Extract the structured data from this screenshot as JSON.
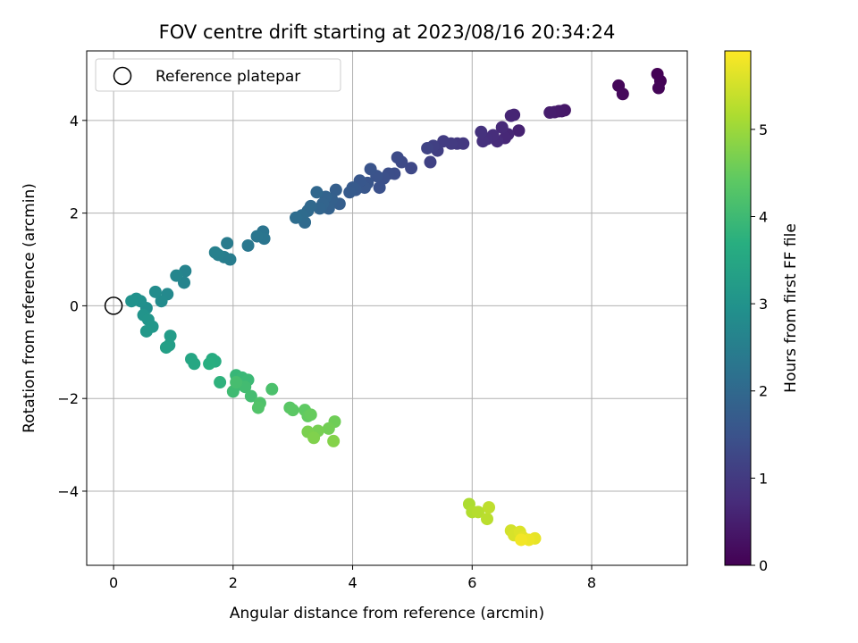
{
  "chart_data": {
    "type": "scatter",
    "title": "FOV centre drift starting at 2023/08/16 20:34:24",
    "xlabel": "Angular distance from reference (arcmin)",
    "ylabel": "Rotation from reference (arcmin)",
    "xlim": [
      -0.45,
      9.6
    ],
    "ylim": [
      -5.6,
      5.5
    ],
    "x_ticks": [
      0,
      2,
      4,
      6,
      8
    ],
    "y_ticks": [
      -4,
      -2,
      0,
      2,
      4
    ],
    "x_tick_labels": [
      "0",
      "2",
      "4",
      "6",
      "8"
    ],
    "y_tick_labels": [
      "−4",
      "−2",
      "0",
      "2",
      "4"
    ],
    "grid": true,
    "legend": {
      "position": "top-left",
      "entries": [
        {
          "label": "Reference platepar",
          "marker": "open-circle",
          "color": "#000000"
        }
      ]
    },
    "colorbar": {
      "label": "Hours from first FF file",
      "min": 0,
      "max": 5.9,
      "ticks": [
        0,
        1,
        2,
        3,
        4,
        5
      ],
      "tick_labels": [
        "0",
        "1",
        "2",
        "3",
        "4",
        "5"
      ],
      "colormap": "viridis"
    },
    "reference_point": {
      "x": 0,
      "y": 0
    },
    "points": [
      [
        9.1,
        5.0,
        0.02
      ],
      [
        9.15,
        4.85,
        0.04
      ],
      [
        9.12,
        4.7,
        0.06
      ],
      [
        8.45,
        4.75,
        0.1
      ],
      [
        8.52,
        4.57,
        0.14
      ],
      [
        7.55,
        4.22,
        0.35
      ],
      [
        7.5,
        4.2,
        0.38
      ],
      [
        7.45,
        4.2,
        0.41
      ],
      [
        7.38,
        4.18,
        0.44
      ],
      [
        7.3,
        4.17,
        0.47
      ],
      [
        6.78,
        3.78,
        0.55
      ],
      [
        6.7,
        4.12,
        0.58
      ],
      [
        6.65,
        4.1,
        0.6
      ],
      [
        6.6,
        3.7,
        0.63
      ],
      [
        6.55,
        3.62,
        0.66
      ],
      [
        6.5,
        3.85,
        0.69
      ],
      [
        6.42,
        3.55,
        0.72
      ],
      [
        6.35,
        3.68,
        0.75
      ],
      [
        6.25,
        3.6,
        0.78
      ],
      [
        6.18,
        3.55,
        0.81
      ],
      [
        6.15,
        3.75,
        0.84
      ],
      [
        5.85,
        3.5,
        0.95
      ],
      [
        5.75,
        3.5,
        0.98
      ],
      [
        5.65,
        3.5,
        1.01
      ],
      [
        5.52,
        3.55,
        1.04
      ],
      [
        5.42,
        3.35,
        1.08
      ],
      [
        5.35,
        3.45,
        1.11
      ],
      [
        5.3,
        3.1,
        1.14
      ],
      [
        5.25,
        3.4,
        1.17
      ],
      [
        4.98,
        2.97,
        1.28
      ],
      [
        4.82,
        3.1,
        1.31
      ],
      [
        4.75,
        3.2,
        1.34
      ],
      [
        4.7,
        2.85,
        1.37
      ],
      [
        4.6,
        2.85,
        1.4
      ],
      [
        4.52,
        2.75,
        1.43
      ],
      [
        4.45,
        2.55,
        1.46
      ],
      [
        4.4,
        2.8,
        1.49
      ],
      [
        4.3,
        2.95,
        1.52
      ],
      [
        4.25,
        2.65,
        1.55
      ],
      [
        4.2,
        2.55,
        1.58
      ],
      [
        4.12,
        2.7,
        1.6
      ],
      [
        4.05,
        2.5,
        1.63
      ],
      [
        4.0,
        2.55,
        1.66
      ],
      [
        3.95,
        2.45,
        1.69
      ],
      [
        3.78,
        2.2,
        1.75
      ],
      [
        3.72,
        2.5,
        1.78
      ],
      [
        3.65,
        2.3,
        1.8
      ],
      [
        3.6,
        2.1,
        1.83
      ],
      [
        3.55,
        2.35,
        1.86
      ],
      [
        3.5,
        2.2,
        1.89
      ],
      [
        3.45,
        2.1,
        1.92
      ],
      [
        3.4,
        2.45,
        1.95
      ],
      [
        3.3,
        2.15,
        1.98
      ],
      [
        3.25,
        2.05,
        2.0
      ],
      [
        3.2,
        1.8,
        2.03
      ],
      [
        3.15,
        1.95,
        2.06
      ],
      [
        3.05,
        1.9,
        2.09
      ],
      [
        2.5,
        1.6,
        2.25
      ],
      [
        2.52,
        1.45,
        2.28
      ],
      [
        2.4,
        1.5,
        2.31
      ],
      [
        2.25,
        1.3,
        2.34
      ],
      [
        1.9,
        1.35,
        2.42
      ],
      [
        1.95,
        1.0,
        2.45
      ],
      [
        1.85,
        1.05,
        2.48
      ],
      [
        1.75,
        1.1,
        2.51
      ],
      [
        1.7,
        1.15,
        2.54
      ],
      [
        1.2,
        0.75,
        2.62
      ],
      [
        1.18,
        0.5,
        2.65
      ],
      [
        1.05,
        0.65,
        2.68
      ],
      [
        0.9,
        0.25,
        2.76
      ],
      [
        0.8,
        0.1,
        2.8
      ],
      [
        0.7,
        0.3,
        2.84
      ],
      [
        0.55,
        -0.05,
        2.88
      ],
      [
        0.45,
        0.1,
        2.92
      ],
      [
        0.38,
        0.15,
        2.95
      ],
      [
        0.3,
        0.1,
        2.98
      ],
      [
        0.5,
        -0.2,
        3.02
      ],
      [
        0.58,
        -0.3,
        3.06
      ],
      [
        0.65,
        -0.45,
        3.1
      ],
      [
        0.55,
        -0.55,
        3.14
      ],
      [
        0.95,
        -0.65,
        3.22
      ],
      [
        0.93,
        -0.85,
        3.26
      ],
      [
        0.88,
        -0.9,
        3.3
      ],
      [
        1.3,
        -1.15,
        3.45
      ],
      [
        1.35,
        -1.25,
        3.5
      ],
      [
        1.65,
        -1.15,
        3.6
      ],
      [
        1.7,
        -1.2,
        3.64
      ],
      [
        1.6,
        -1.25,
        3.68
      ],
      [
        1.78,
        -1.65,
        3.78
      ],
      [
        2.05,
        -1.5,
        3.9
      ],
      [
        2.15,
        -1.55,
        3.93
      ],
      [
        2.25,
        -1.6,
        3.96
      ],
      [
        2.1,
        -1.7,
        3.99
      ],
      [
        2.0,
        -1.85,
        4.02
      ],
      [
        2.2,
        -1.75,
        4.05
      ],
      [
        2.3,
        -1.95,
        4.08
      ],
      [
        2.05,
        -1.65,
        4.11
      ],
      [
        2.65,
        -1.8,
        4.18
      ],
      [
        2.45,
        -2.1,
        4.22
      ],
      [
        2.42,
        -2.2,
        4.26
      ],
      [
        2.95,
        -2.2,
        4.35
      ],
      [
        3.0,
        -2.25,
        4.38
      ],
      [
        3.2,
        -2.25,
        4.42
      ],
      [
        3.25,
        -2.38,
        4.46
      ],
      [
        3.3,
        -2.35,
        4.5
      ],
      [
        3.7,
        -2.5,
        4.58
      ],
      [
        3.6,
        -2.65,
        4.62
      ],
      [
        3.42,
        -2.7,
        4.66
      ],
      [
        3.25,
        -2.72,
        4.7
      ],
      [
        3.35,
        -2.85,
        4.74
      ],
      [
        3.68,
        -2.92,
        4.78
      ],
      [
        5.95,
        -4.28,
        5.15
      ],
      [
        6.0,
        -4.45,
        5.2
      ],
      [
        6.1,
        -4.45,
        5.24
      ],
      [
        6.25,
        -4.6,
        5.28
      ],
      [
        6.28,
        -4.35,
        5.32
      ],
      [
        6.65,
        -4.85,
        5.5
      ],
      [
        6.7,
        -4.95,
        5.55
      ],
      [
        6.8,
        -4.88,
        5.6
      ],
      [
        6.85,
        -5.0,
        5.65
      ],
      [
        7.05,
        -5.02,
        5.7
      ],
      [
        6.95,
        -5.05,
        5.75
      ],
      [
        6.82,
        -5.05,
        5.8
      ]
    ]
  }
}
